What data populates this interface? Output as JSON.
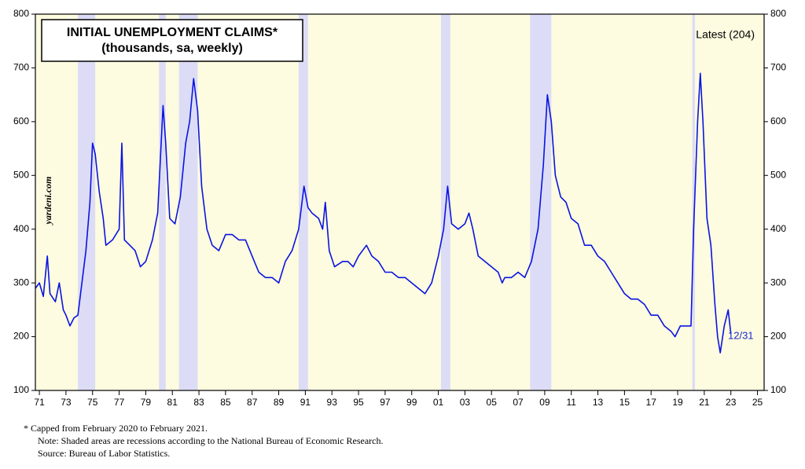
{
  "chart_data": {
    "type": "line",
    "title": "INITIAL UNEMPLOYMENT CLAIMS*",
    "subtitle": "(thousands, sa, weekly)",
    "annotations": {
      "latest": "Latest (204)",
      "date": "12/31",
      "source_mark": "yardeni.com"
    },
    "footnotes": [
      "*   Capped from February 2020 to February 2021.",
      "Note: Shaded areas are recessions according to the National Bureau of Economic Research.",
      "Source: Bureau of Labor Statistics."
    ],
    "recessions": [
      [
        1973.9,
        1975.2
      ],
      [
        1980.0,
        1980.5
      ],
      [
        1981.5,
        1982.9
      ],
      [
        1990.5,
        1991.2
      ],
      [
        2001.2,
        2001.9
      ],
      [
        2007.9,
        2009.5
      ],
      [
        2020.1,
        2020.3
      ]
    ],
    "x": [
      1970.7,
      1971.0,
      1971.3,
      1971.6,
      1971.8,
      1972.2,
      1972.5,
      1972.8,
      1973.0,
      1973.3,
      1973.6,
      1973.9,
      1974.2,
      1974.5,
      1974.8,
      1975.0,
      1975.2,
      1975.5,
      1975.8,
      1976.0,
      1976.5,
      1977.0,
      1977.2,
      1977.4,
      1977.8,
      1978.2,
      1978.6,
      1979.0,
      1979.5,
      1979.9,
      1980.3,
      1980.5,
      1980.8,
      1981.2,
      1981.6,
      1982.0,
      1982.3,
      1982.6,
      1982.9,
      1983.2,
      1983.6,
      1984.0,
      1984.5,
      1985.0,
      1985.5,
      1986.0,
      1986.5,
      1987.0,
      1987.5,
      1988.0,
      1988.5,
      1989.0,
      1989.5,
      1990.0,
      1990.5,
      1990.9,
      1991.2,
      1991.5,
      1992.0,
      1992.3,
      1992.5,
      1992.8,
      1993.2,
      1993.8,
      1994.2,
      1994.6,
      1995.0,
      1995.6,
      1996.0,
      1996.5,
      1997.0,
      1997.5,
      1998.0,
      1998.5,
      1999.0,
      1999.5,
      2000.0,
      2000.5,
      2001.0,
      2001.4,
      2001.7,
      2002.0,
      2002.5,
      2003.0,
      2003.3,
      2003.6,
      2004.0,
      2004.5,
      2005.0,
      2005.5,
      2005.8,
      2006.0,
      2006.5,
      2007.0,
      2007.5,
      2008.0,
      2008.5,
      2008.9,
      2009.2,
      2009.5,
      2009.8,
      2010.2,
      2010.6,
      2011.0,
      2011.5,
      2012.0,
      2012.5,
      2013.0,
      2013.5,
      2014.0,
      2014.5,
      2015.0,
      2015.5,
      2016.0,
      2016.5,
      2017.0,
      2017.5,
      2018.0,
      2018.5,
      2018.8,
      2019.2,
      2019.7,
      2020.0,
      2020.2,
      2020.5,
      2020.7,
      2020.9,
      2021.2,
      2021.5,
      2021.8,
      2022.0,
      2022.2,
      2022.5,
      2022.8,
      2023.0
    ],
    "series": [
      {
        "name": "Initial claims",
        "color": "#0a14e0",
        "values": [
          290,
          300,
          275,
          350,
          280,
          265,
          300,
          250,
          240,
          220,
          235,
          240,
          300,
          360,
          450,
          560,
          540,
          470,
          420,
          370,
          380,
          400,
          560,
          380,
          370,
          360,
          330,
          340,
          380,
          430,
          630,
          560,
          420,
          410,
          460,
          560,
          600,
          680,
          620,
          480,
          400,
          370,
          360,
          390,
          390,
          380,
          380,
          350,
          320,
          310,
          310,
          300,
          340,
          360,
          400,
          480,
          440,
          430,
          420,
          400,
          450,
          360,
          330,
          340,
          340,
          330,
          350,
          370,
          350,
          340,
          320,
          320,
          310,
          310,
          300,
          290,
          280,
          300,
          350,
          400,
          480,
          410,
          400,
          410,
          430,
          400,
          350,
          340,
          330,
          320,
          300,
          310,
          310,
          320,
          310,
          340,
          400,
          520,
          650,
          600,
          500,
          460,
          450,
          420,
          410,
          370,
          370,
          350,
          340,
          320,
          300,
          280,
          270,
          270,
          260,
          240,
          240,
          220,
          210,
          200,
          220,
          220,
          220,
          400,
          600,
          690,
          600,
          420,
          370,
          260,
          200,
          170,
          220,
          250,
          205
        ]
      }
    ],
    "xlim": [
      1970.7,
      2025.5
    ],
    "xticks": [
      {
        "value": 1971,
        "label": "71"
      },
      {
        "value": 1973,
        "label": "73"
      },
      {
        "value": 1975,
        "label": "75"
      },
      {
        "value": 1977,
        "label": "77"
      },
      {
        "value": 1979,
        "label": "79"
      },
      {
        "value": 1981,
        "label": "81"
      },
      {
        "value": 1983,
        "label": "83"
      },
      {
        "value": 1985,
        "label": "85"
      },
      {
        "value": 1987,
        "label": "87"
      },
      {
        "value": 1989,
        "label": "89"
      },
      {
        "value": 1991,
        "label": "91"
      },
      {
        "value": 1993,
        "label": "93"
      },
      {
        "value": 1995,
        "label": "95"
      },
      {
        "value": 1997,
        "label": "97"
      },
      {
        "value": 1999,
        "label": "99"
      },
      {
        "value": 2001,
        "label": "01"
      },
      {
        "value": 2003,
        "label": "03"
      },
      {
        "value": 2005,
        "label": "05"
      },
      {
        "value": 2007,
        "label": "07"
      },
      {
        "value": 2009,
        "label": "09"
      },
      {
        "value": 2011,
        "label": "11"
      },
      {
        "value": 2013,
        "label": "13"
      },
      {
        "value": 2015,
        "label": "15"
      },
      {
        "value": 2017,
        "label": "17"
      },
      {
        "value": 2019,
        "label": "19"
      },
      {
        "value": 2021,
        "label": "21"
      },
      {
        "value": 2023,
        "label": "23"
      },
      {
        "value": 2025,
        "label": "25"
      }
    ],
    "ylim": [
      100,
      800
    ],
    "yticks": [
      100,
      200,
      300,
      400,
      500,
      600,
      700,
      800
    ],
    "background": "#fdfbe0",
    "recession_color": "#dcdcf6"
  }
}
